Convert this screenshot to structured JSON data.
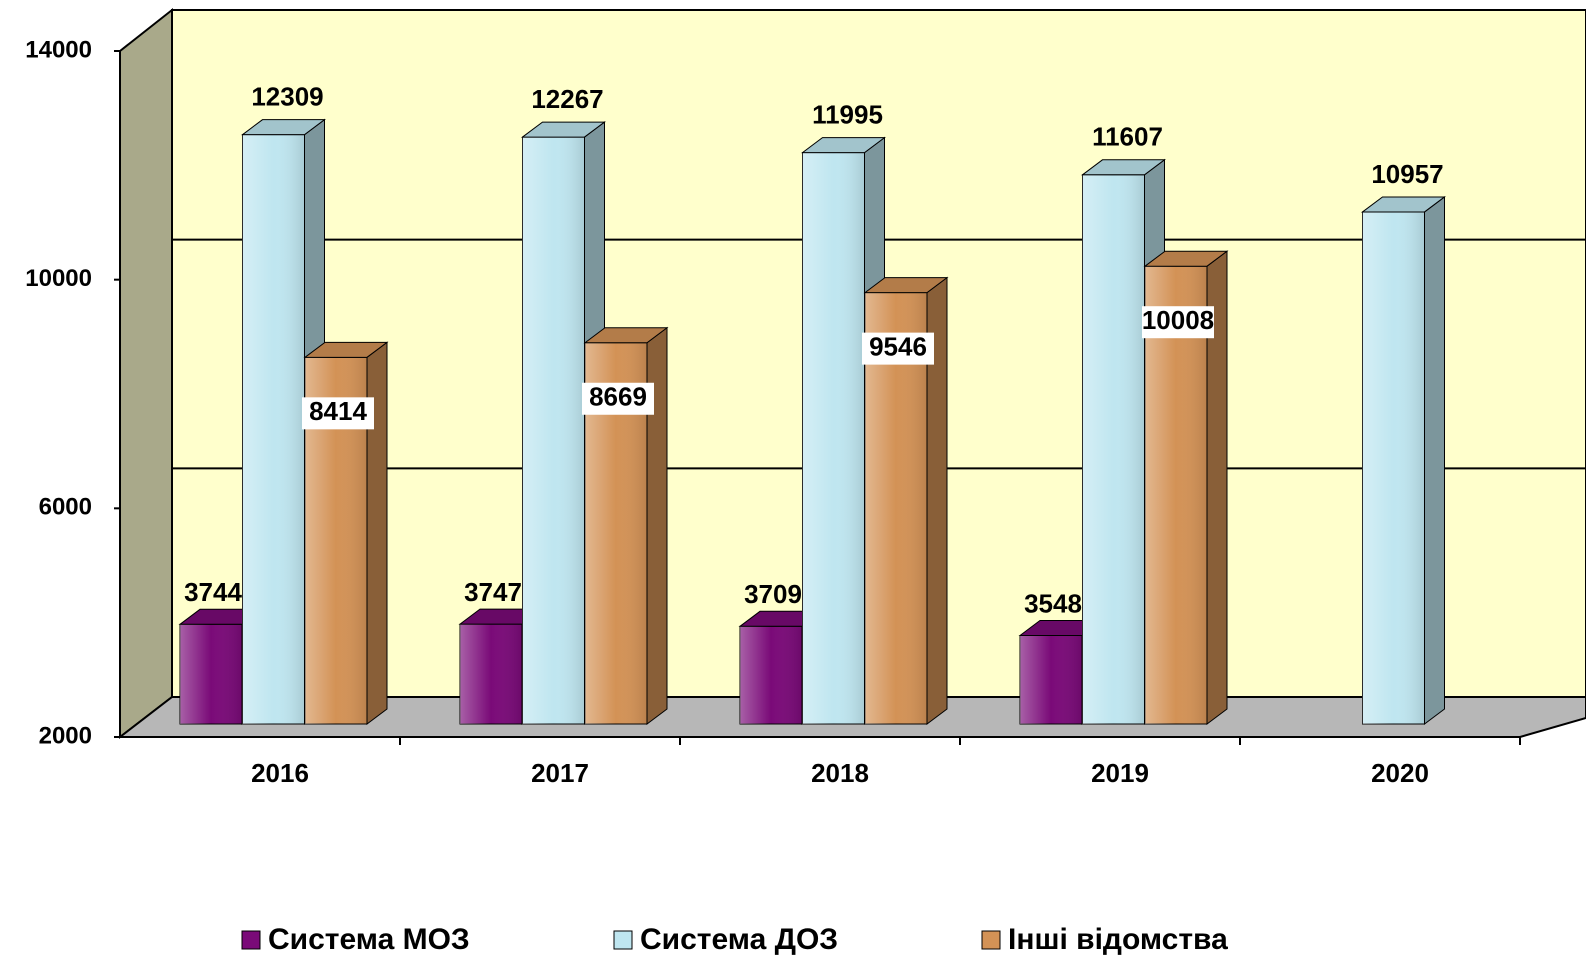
{
  "chart_data": {
    "type": "bar3d",
    "categories": [
      "2016",
      "2017",
      "2018",
      "2019",
      "2020"
    ],
    "series": [
      {
        "name": "Система МОЗ",
        "color": "#7a0a78",
        "values": [
          3744,
          3747,
          3709,
          3548,
          null
        ]
      },
      {
        "name": "Система ДОЗ",
        "color": "#bfe6f0",
        "values": [
          12309,
          12267,
          11995,
          11607,
          10957
        ]
      },
      {
        "name": "Інші відомства",
        "color": "#d39256",
        "values": [
          8414,
          8669,
          9546,
          10008,
          null
        ]
      }
    ],
    "ylim": [
      2000,
      14000
    ],
    "yticks": [
      2000,
      6000,
      10000,
      14000
    ],
    "grid": true,
    "legend": "bottom"
  }
}
